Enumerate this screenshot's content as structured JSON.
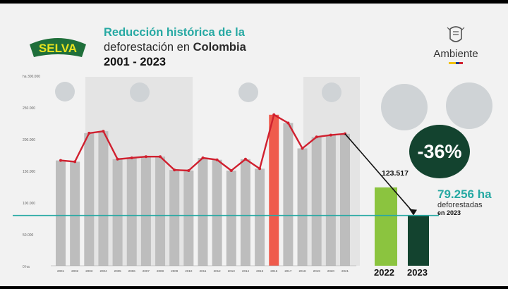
{
  "logo": {
    "small_text": "",
    "word": "SELVA"
  },
  "title": {
    "line1": "Reducción histórica de la",
    "line2_prefix": "deforestación en ",
    "line2_bold": "Colombia",
    "line3": "2001 - 2023"
  },
  "ministry": {
    "name": "Ambiente"
  },
  "colors": {
    "bar": "#bdbdbd",
    "bar_2016": "#ef5b4c",
    "bar_2022": "#8bc43f",
    "bar_2023": "#13432f",
    "line": "#d0202f",
    "reference": "#27a9a3",
    "accent_title": "#27a9a3",
    "band": "#e4e4e4"
  },
  "chart_data": {
    "type": "bar",
    "title": "Reducción histórica de la deforestación en Colombia 2001 - 2023",
    "ylabel": "ha",
    "ylim": [
      0,
      300000
    ],
    "yticks": [
      "0 ha",
      "50.000",
      "100.000",
      "150.000",
      "200.000",
      "250.000",
      "ha 300.000"
    ],
    "categories": [
      "2001",
      "2002",
      "2003",
      "2004",
      "2005",
      "2006",
      "2007",
      "2008",
      "2009",
      "2010",
      "2011",
      "2012",
      "2013",
      "2014",
      "2015",
      "2016",
      "2017",
      "2018",
      "2019",
      "2020",
      "2021"
    ],
    "values": [
      166000,
      164000,
      209000,
      212000,
      168000,
      170000,
      172000,
      172000,
      151000,
      150000,
      170000,
      167000,
      150000,
      168000,
      153000,
      238000,
      225000,
      185000,
      203000,
      206000,
      208000
    ],
    "data_labels": [
      "",
      "",
      "",
      "",
      "",
      "",
      "",
      "",
      "",
      "",
      "",
      "",
      "",
      "",
      "",
      "",
      "",
      "",
      "",
      "",
      ""
    ],
    "highlight": [
      {
        "year": "2022",
        "value": 123517,
        "label": "123.517"
      },
      {
        "year": "2023",
        "value": 79256,
        "label": "79.256 ha"
      }
    ],
    "reference_line": {
      "value": 79256,
      "label": "79.256 ha",
      "sublabel": "deforestadas",
      "year_label": "en 2023"
    },
    "change_badge": "-36%",
    "grid": false,
    "legend": "none"
  }
}
